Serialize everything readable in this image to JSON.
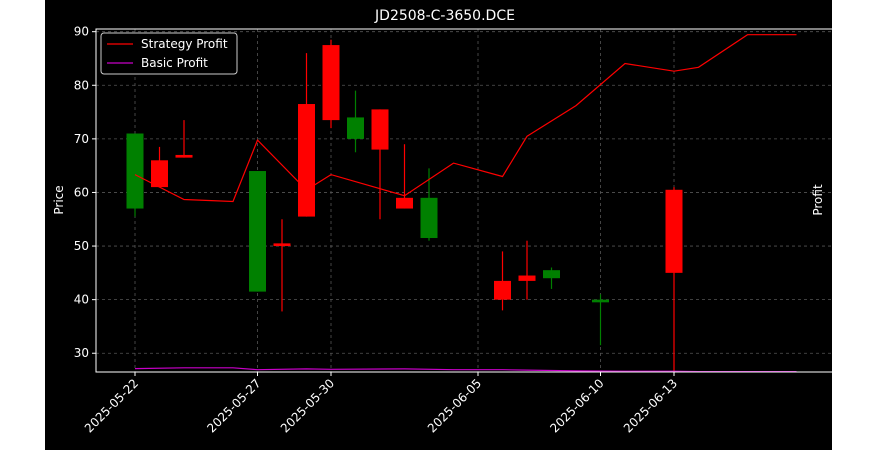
{
  "chart_data": {
    "type": "candlestick",
    "title": "JD2508-C-3650.DCE",
    "ylabel_left": "Price",
    "ylabel_right": "Profit",
    "ylim_left": [
      26.5,
      90.5
    ],
    "ylim_right": [
      0.05,
      9.0
    ],
    "grid": true,
    "legend_position": "upper-left",
    "up_color": "#ff0000",
    "down_color": "#008000",
    "x_ticks": [
      {
        "x": 0,
        "label": "2025-05-22"
      },
      {
        "x": 5,
        "label": "2025-05-27"
      },
      {
        "x": 8,
        "label": "2025-05-30"
      },
      {
        "x": 14,
        "label": "2025-06-05"
      },
      {
        "x": 19,
        "label": "2025-06-10"
      },
      {
        "x": 22,
        "label": "2025-06-13"
      }
    ],
    "y_ticks_left": [
      30,
      40,
      50,
      60,
      70,
      80,
      90
    ],
    "y_ticks_right": [
      1,
      2,
      3,
      4,
      5,
      6,
      7,
      8
    ],
    "candles": [
      {
        "x": 0,
        "open": 71.0,
        "close": 57.0,
        "high": 71.0,
        "low": 55.5
      },
      {
        "x": 1,
        "open": 61.0,
        "close": 66.0,
        "high": 68.5,
        "low": 61.0
      },
      {
        "x": 2,
        "open": 66.5,
        "close": 67.0,
        "high": 73.5,
        "low": 66.5
      },
      {
        "x": 5,
        "open": 64.0,
        "close": 41.5,
        "high": 64.0,
        "low": 41.5
      },
      {
        "x": 6,
        "open": 50.0,
        "close": 50.5,
        "high": 55.0,
        "low": 37.8
      },
      {
        "x": 7,
        "open": 55.5,
        "close": 76.5,
        "high": 86.0,
        "low": 55.5
      },
      {
        "x": 8,
        "open": 73.5,
        "close": 87.5,
        "high": 88.5,
        "low": 72.0
      },
      {
        "x": 9,
        "open": 74.0,
        "close": 70.0,
        "high": 79.0,
        "low": 67.5
      },
      {
        "x": 10,
        "open": 68.0,
        "close": 75.5,
        "high": 75.5,
        "low": 55.0
      },
      {
        "x": 11,
        "open": 57.0,
        "close": 59.0,
        "high": 69.0,
        "low": 57.0
      },
      {
        "x": 12,
        "open": 59.0,
        "close": 51.5,
        "high": 64.5,
        "low": 51.0
      },
      {
        "x": 15,
        "open": 40.0,
        "close": 43.5,
        "high": 49.0,
        "low": 38.0
      },
      {
        "x": 16,
        "open": 43.5,
        "close": 44.5,
        "high": 51.0,
        "low": 40.0
      },
      {
        "x": 17,
        "open": 45.5,
        "close": 44.0,
        "high": 46.0,
        "low": 42.0
      },
      {
        "x": 19,
        "open": 40.0,
        "close": 39.5,
        "high": 41.0,
        "low": 31.5
      },
      {
        "x": 22,
        "open": 45.0,
        "close": 60.5,
        "high": 61.0,
        "low": 26.5
      }
    ],
    "series": [
      {
        "name": "Strategy Profit",
        "color": "#ff0000",
        "axis": "right",
        "points": [
          [
            0,
            5.2
          ],
          [
            2,
            4.55
          ],
          [
            4,
            4.5
          ],
          [
            5,
            6.1
          ],
          [
            7,
            4.8
          ],
          [
            8,
            5.2
          ],
          [
            11,
            4.65
          ],
          [
            13,
            5.5
          ],
          [
            15,
            5.15
          ],
          [
            16,
            6.2
          ],
          [
            18,
            7.0
          ],
          [
            20,
            8.1
          ],
          [
            22,
            7.9
          ],
          [
            23,
            8.0
          ],
          [
            25,
            8.85
          ],
          [
            27,
            8.85
          ]
        ]
      },
      {
        "name": "Basic Profit",
        "color": "#c800c8",
        "axis": "right",
        "points": [
          [
            0,
            0.14
          ],
          [
            2,
            0.16
          ],
          [
            4,
            0.16
          ],
          [
            5,
            0.11
          ],
          [
            7,
            0.13
          ],
          [
            8,
            0.12
          ],
          [
            11,
            0.13
          ],
          [
            13,
            0.11
          ],
          [
            15,
            0.11
          ],
          [
            16,
            0.1
          ],
          [
            18,
            0.08
          ],
          [
            20,
            0.07
          ],
          [
            22,
            0.07
          ],
          [
            23,
            0.06
          ],
          [
            25,
            0.06
          ],
          [
            27,
            0.06
          ]
        ]
      }
    ]
  }
}
